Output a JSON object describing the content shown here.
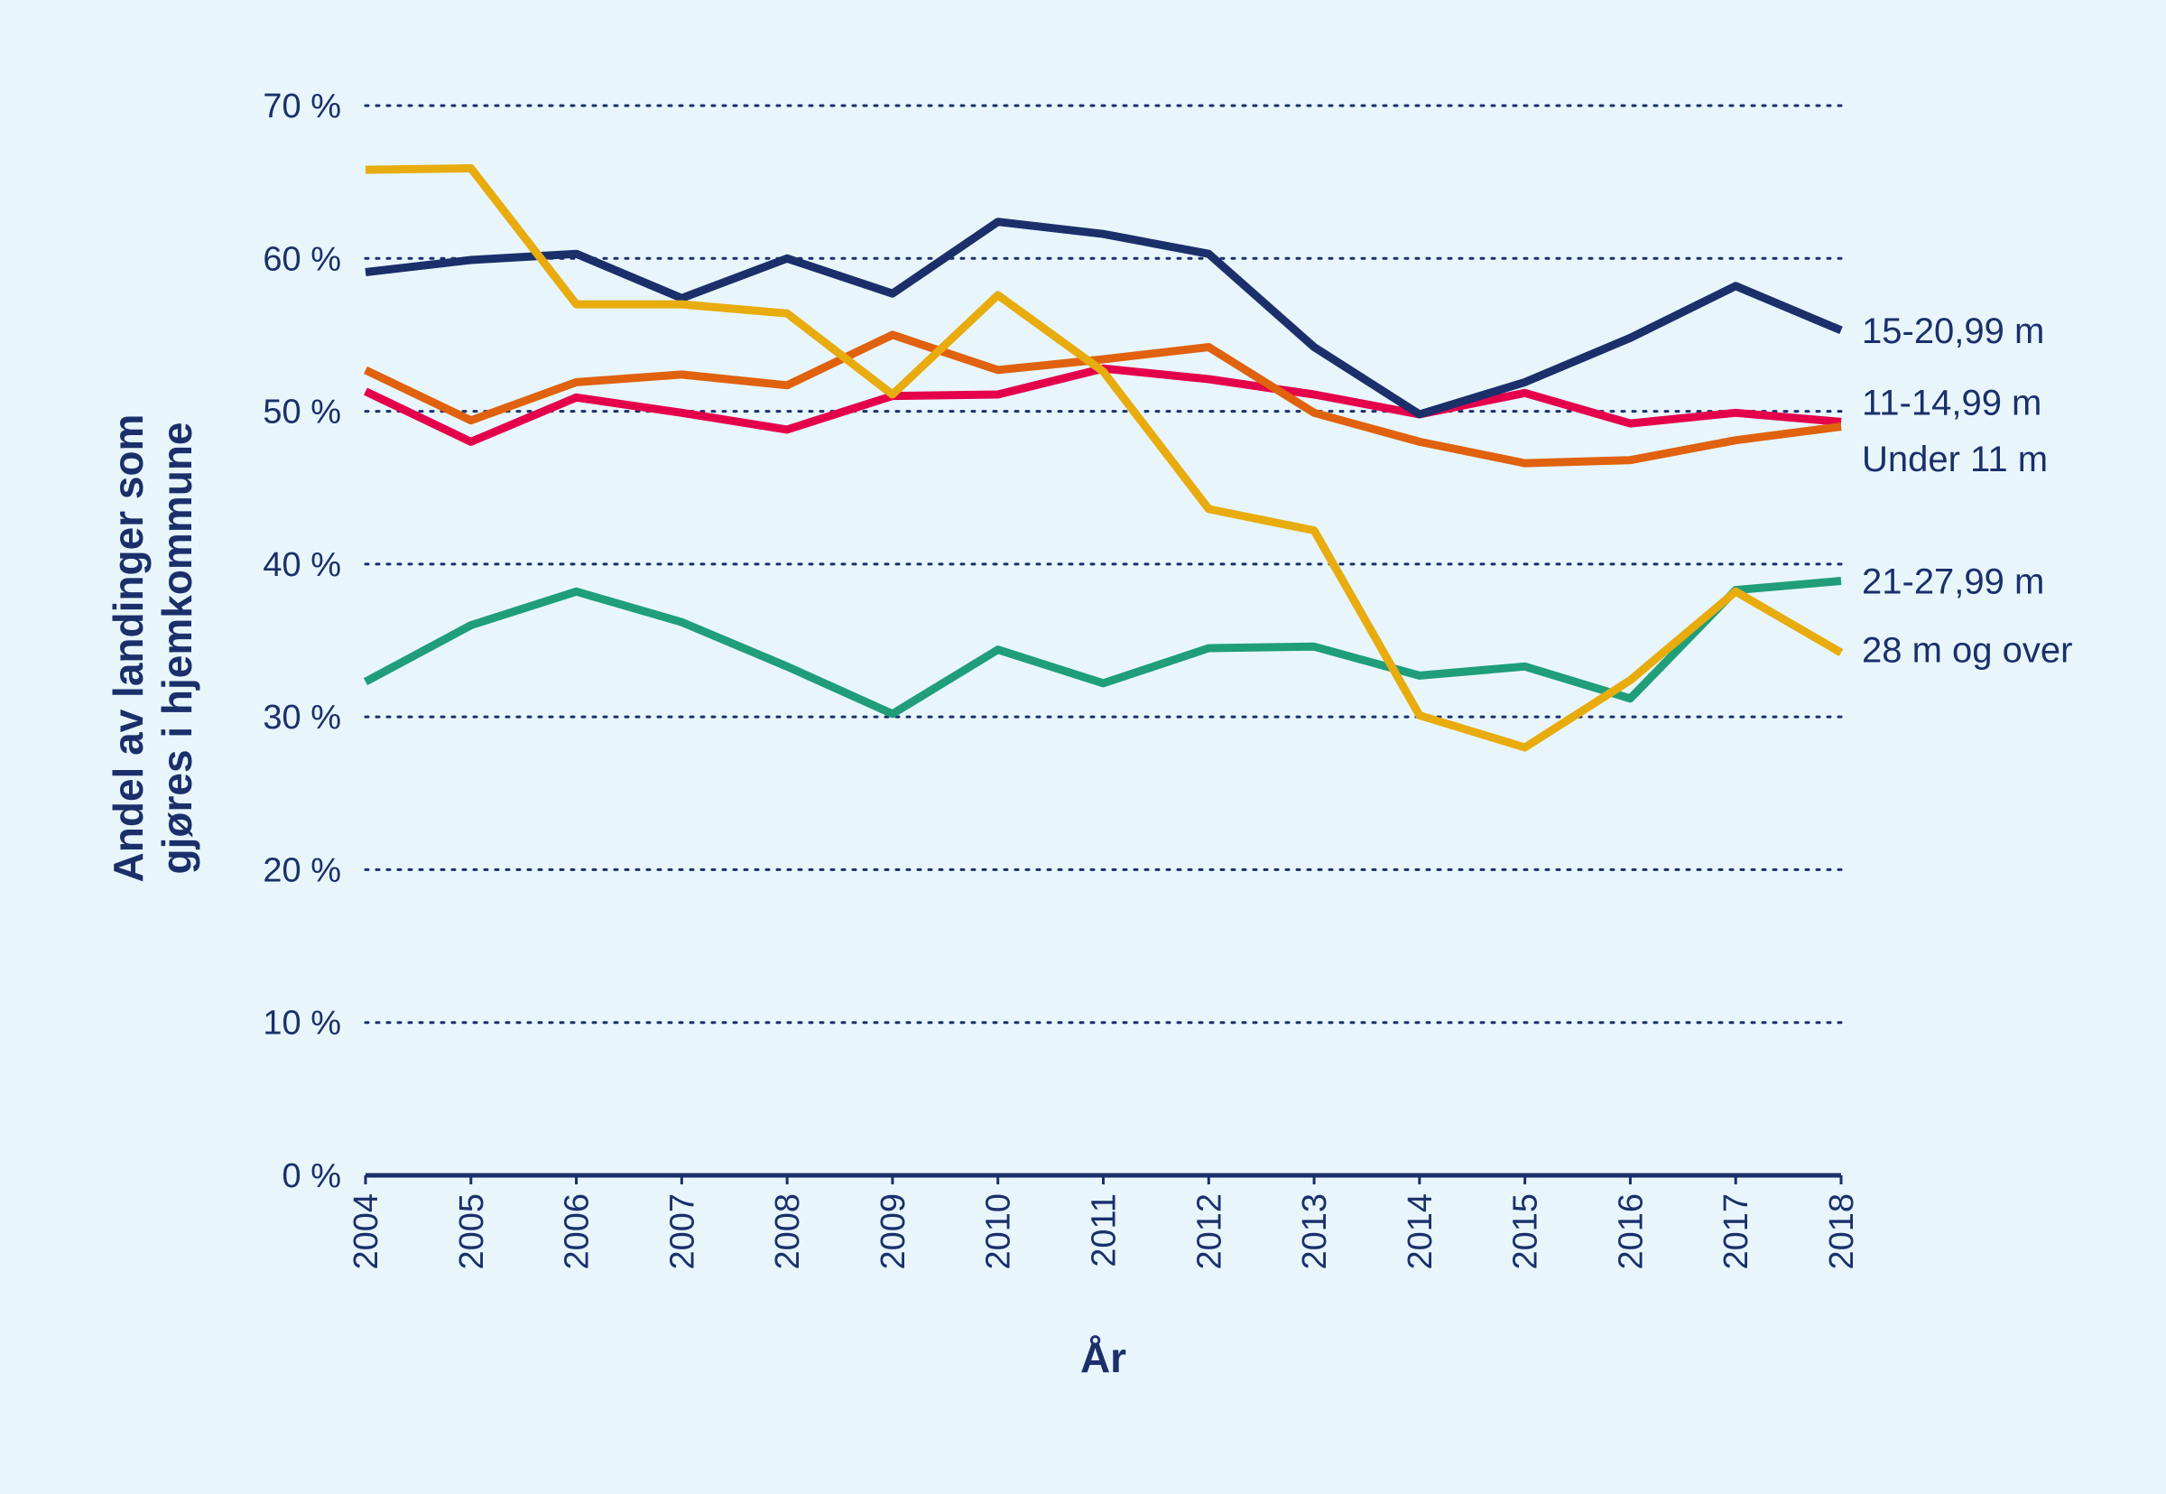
{
  "colors": {
    "background": "#e8f6fc",
    "text": "#1b2f6b",
    "grid": "#1b2f6b",
    "axis": "#1b2f6b"
  },
  "chart_data": {
    "type": "line",
    "title": "",
    "xlabel": "År",
    "ylabel": "Andel av landinger som gjøres i hjemkommune",
    "ylabel_lines": [
      "Andel av landinger som",
      "gjøres i hjemkommune"
    ],
    "x": [
      "2004",
      "2005",
      "2006",
      "2007",
      "2008",
      "2009",
      "2010",
      "2011",
      "2012",
      "2013",
      "2014",
      "2015",
      "2016",
      "2017",
      "2018"
    ],
    "ylim": [
      0,
      70
    ],
    "yticks": [
      0,
      10,
      20,
      30,
      40,
      50,
      60,
      70
    ],
    "ytick_labels": [
      "0 %",
      "10 %",
      "20 %",
      "30 %",
      "40 %",
      "50 %",
      "60 %",
      "70 %"
    ],
    "grid": "horizontal dotted",
    "legend": "labels at line ends (right)",
    "series": [
      {
        "id": "s2127",
        "name": "21-27,99 m",
        "color": "#1f9e79",
        "values": [
          32.3,
          36.0,
          38.2,
          36.2,
          33.3,
          30.2,
          34.4,
          32.2,
          34.5,
          34.6,
          32.7,
          33.3,
          31.2,
          38.3,
          38.9
        ]
      },
      {
        "id": "s1114",
        "name": "11-14,99 m",
        "color": "#e5004b",
        "values": [
          51.3,
          48.0,
          50.9,
          49.9,
          48.8,
          51.0,
          51.1,
          52.8,
          52.1,
          51.1,
          49.8,
          51.2,
          49.2,
          49.9,
          49.3
        ]
      },
      {
        "id": "su11",
        "name": "Under 11 m",
        "color": "#e0620e",
        "values": [
          52.7,
          49.4,
          51.9,
          52.4,
          51.7,
          55.0,
          52.7,
          53.4,
          54.2,
          49.9,
          48.0,
          46.6,
          46.8,
          48.1,
          49.0
        ]
      },
      {
        "id": "s1520",
        "name": "15-20,99 m",
        "color": "#1b2f6b",
        "values": [
          59.1,
          59.9,
          60.3,
          57.4,
          60.0,
          57.7,
          62.4,
          61.6,
          60.3,
          54.2,
          49.8,
          51.9,
          54.8,
          58.2,
          55.3
        ]
      },
      {
        "id": "s28",
        "name": "28 m og over",
        "color": "#e8ac0e",
        "values": [
          65.8,
          65.9,
          57.0,
          57.0,
          56.4,
          51.1,
          57.6,
          52.6,
          43.6,
          42.2,
          30.1,
          28.0,
          32.4,
          38.2,
          34.2
        ]
      }
    ],
    "end_labels": [
      {
        "series": "s1520",
        "text": "15-20,99 m",
        "anchor_value": 55.3
      },
      {
        "series": "s1114",
        "text": "11-14,99 m",
        "anchor_value": 50.6
      },
      {
        "series": "su11",
        "text": "Under 11 m",
        "anchor_value": 46.9
      },
      {
        "series": "s2127",
        "text": "21-27,99 m",
        "anchor_value": 38.9
      },
      {
        "series": "s28",
        "text": "28 m og over",
        "anchor_value": 34.4
      }
    ]
  }
}
